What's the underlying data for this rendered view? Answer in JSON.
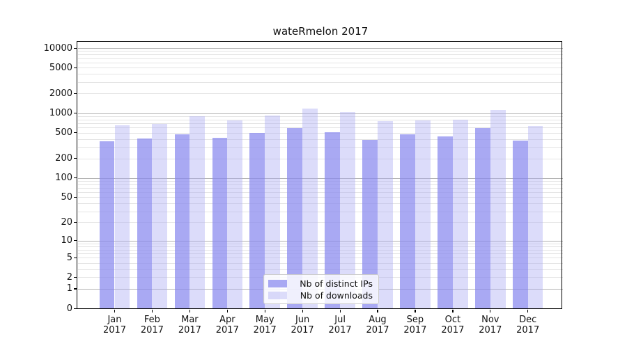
{
  "chart_data": {
    "type": "bar",
    "title": "wateRmelon 2017",
    "scale": "log10(1+x)",
    "xlabel": "",
    "ylabel": "",
    "categories": [
      "Jan",
      "Feb",
      "Mar",
      "Apr",
      "May",
      "Jun",
      "Jul",
      "Aug",
      "Sep",
      "Oct",
      "Nov",
      "Dec"
    ],
    "year_label": "2017",
    "series": [
      {
        "name": "Nb of distinct IPs",
        "color": "#8888ee",
        "fill": "rgba(136,136,238,0.72)",
        "values": [
          365,
          405,
          475,
          415,
          500,
          590,
          510,
          390,
          475,
          440,
          590,
          380
        ]
      },
      {
        "name": "Nb of downloads",
        "color": "#abadf5",
        "fill": "rgba(171,171,243,0.42)",
        "values": [
          650,
          690,
          900,
          780,
          920,
          1175,
          1040,
          750,
          770,
          795,
          1130,
          640
        ]
      }
    ],
    "y_ticks": [
      10000,
      5000,
      2000,
      1000,
      500,
      200,
      100,
      50,
      20,
      10,
      5,
      2,
      1,
      0
    ],
    "y_major_gridlines": [
      1,
      10,
      100,
      1000,
      10000
    ],
    "ylim": [
      0,
      12700
    ],
    "grid": "horizontal",
    "legend_position": "lower center",
    "colors": {
      "major_grid": "#b2b2b2",
      "minor_grid": "#e4e4e4",
      "spine": "#000000",
      "background": "#ffffff"
    }
  }
}
